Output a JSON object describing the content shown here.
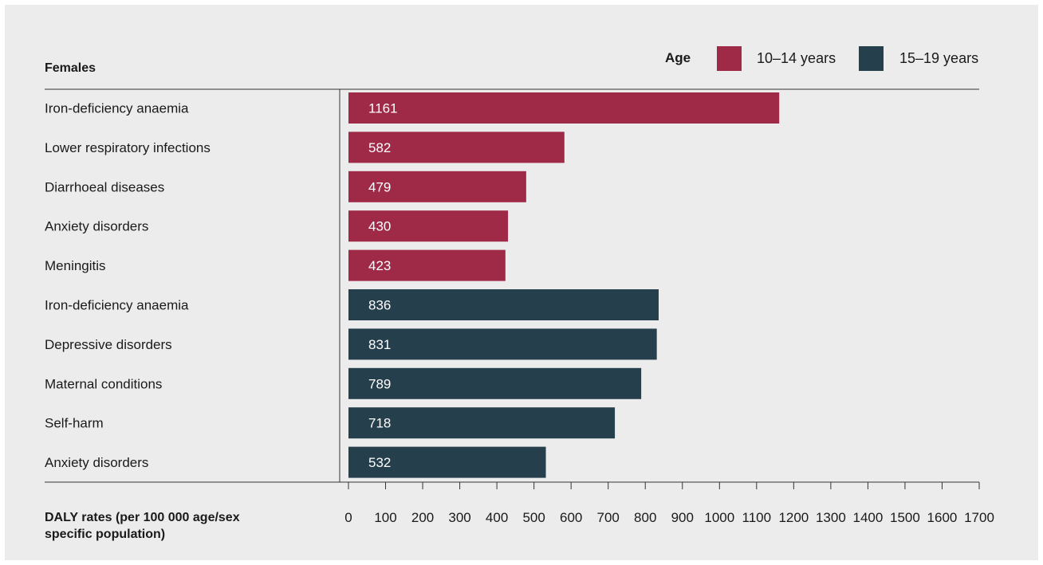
{
  "chart_data": {
    "type": "bar",
    "orientation": "horizontal",
    "category_header": "Females",
    "legend_title": "Age",
    "legend_position": "top-right",
    "xlabel": "DALY rates (per 100 000 age/sex specific population)",
    "xlim": [
      0,
      1700
    ],
    "xticks": [
      0,
      100,
      200,
      300,
      400,
      500,
      600,
      700,
      800,
      900,
      1000,
      1100,
      1200,
      1300,
      1400,
      1500,
      1600,
      1700
    ],
    "grid": false,
    "series": [
      {
        "name": "10–14 years",
        "color": "#9e2a47",
        "categories": [
          "Iron-deficiency anaemia",
          "Lower respiratory infections",
          "Diarrhoeal diseases",
          "Anxiety disorders",
          "Meningitis"
        ],
        "values": [
          1161,
          582,
          479,
          430,
          423
        ]
      },
      {
        "name": "15–19 years",
        "color": "#263f4d",
        "categories": [
          "Iron-deficiency anaemia",
          "Depressive disorders",
          "Maternal conditions",
          "Self-harm",
          "Anxiety disorders"
        ],
        "values": [
          836,
          831,
          789,
          718,
          532
        ]
      }
    ]
  }
}
